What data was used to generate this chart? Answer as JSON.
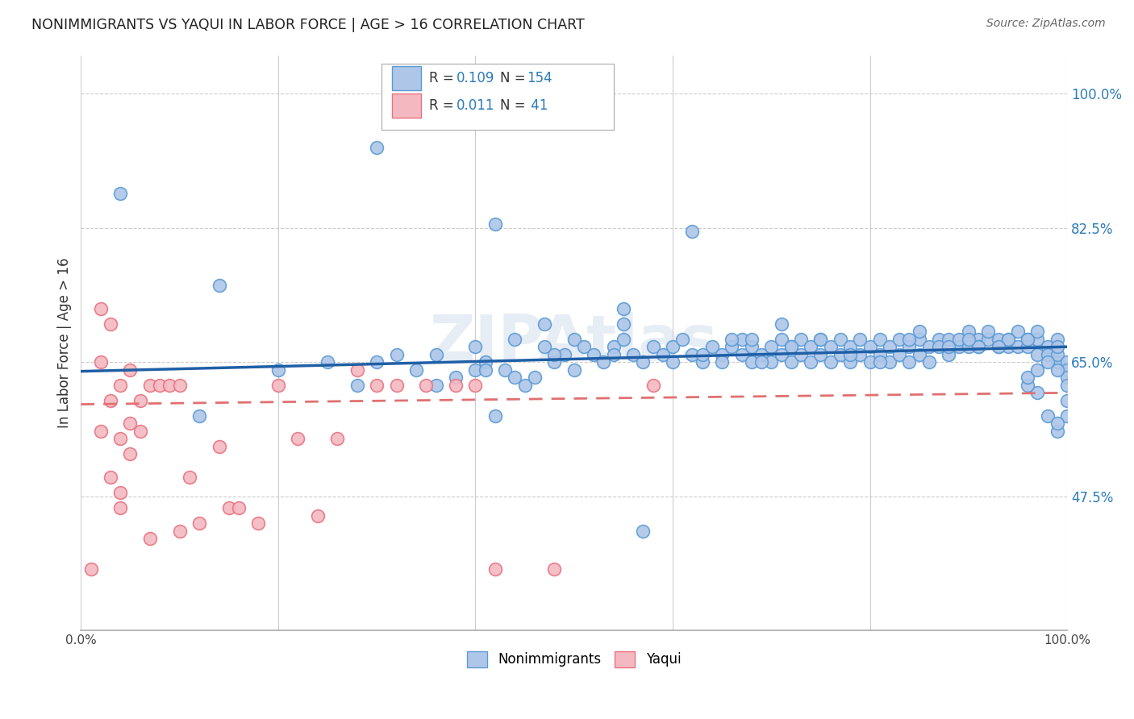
{
  "title": "NONIMMIGRANTS VS YAQUI IN LABOR FORCE | AGE > 16 CORRELATION CHART",
  "source": "Source: ZipAtlas.com",
  "ylabel": "In Labor Force | Age > 16",
  "xlim": [
    0.0,
    1.0
  ],
  "ylim": [
    0.3,
    1.05
  ],
  "ytick_vals": [
    0.475,
    0.65,
    0.825,
    1.0
  ],
  "ytick_labels": [
    "47.5%",
    "65.0%",
    "82.5%",
    "100.0%"
  ],
  "xtick_vals": [
    0.0,
    0.2,
    0.4,
    0.6,
    0.8,
    1.0
  ],
  "xtick_labels": [
    "0.0%",
    "",
    "",
    "",
    "",
    "100.0%"
  ],
  "nonimmigrants_color": "#aec6e8",
  "nonimmigrants_edge_color": "#5b9bd5",
  "yaqui_color": "#f4b8c1",
  "yaqui_edge_color": "#e8737f",
  "trend_blue": "#1f5fa6",
  "trend_pink": "#e07070",
  "legend_R1": "0.109",
  "legend_N1": "154",
  "legend_R2": "0.011",
  "legend_N2": "41",
  "watermark": "ZIPAtlas",
  "nonimmigrants_x": [
    0.04,
    0.12,
    0.14,
    0.2,
    0.25,
    0.28,
    0.3,
    0.3,
    0.32,
    0.34,
    0.36,
    0.38,
    0.4,
    0.4,
    0.41,
    0.42,
    0.43,
    0.44,
    0.45,
    0.46,
    0.47,
    0.48,
    0.49,
    0.5,
    0.5,
    0.51,
    0.52,
    0.53,
    0.54,
    0.55,
    0.55,
    0.56,
    0.57,
    0.58,
    0.59,
    0.6,
    0.6,
    0.61,
    0.62,
    0.63,
    0.64,
    0.65,
    0.65,
    0.66,
    0.67,
    0.67,
    0.68,
    0.68,
    0.69,
    0.7,
    0.7,
    0.71,
    0.71,
    0.72,
    0.72,
    0.73,
    0.73,
    0.74,
    0.74,
    0.75,
    0.75,
    0.76,
    0.76,
    0.77,
    0.77,
    0.78,
    0.78,
    0.79,
    0.79,
    0.8,
    0.8,
    0.81,
    0.81,
    0.82,
    0.82,
    0.83,
    0.83,
    0.84,
    0.84,
    0.85,
    0.85,
    0.86,
    0.86,
    0.87,
    0.87,
    0.88,
    0.88,
    0.89,
    0.89,
    0.9,
    0.9,
    0.91,
    0.91,
    0.92,
    0.92,
    0.93,
    0.93,
    0.94,
    0.94,
    0.95,
    0.95,
    0.96,
    0.96,
    0.97,
    0.97,
    0.98,
    0.98,
    0.99,
    0.99,
    1.0,
    1.0,
    1.0,
    0.42,
    0.55,
    0.68,
    0.48,
    0.62,
    0.71,
    0.85,
    0.88,
    0.91,
    0.94,
    0.97,
    0.99,
    0.99,
    0.98,
    0.97,
    0.96,
    0.96,
    0.97,
    0.98,
    0.99,
    1.0,
    0.57,
    0.36,
    0.41,
    0.44,
    0.47,
    0.54,
    0.63,
    0.66,
    0.69,
    0.72,
    0.75,
    0.78,
    0.81,
    0.84,
    0.9,
    0.93,
    0.96,
    0.99,
    1.0,
    1.0,
    0.99
  ],
  "nonimmigrants_y": [
    0.87,
    0.58,
    0.75,
    0.64,
    0.65,
    0.62,
    0.93,
    0.65,
    0.66,
    0.64,
    0.62,
    0.63,
    0.67,
    0.64,
    0.65,
    0.58,
    0.64,
    0.68,
    0.62,
    0.63,
    0.7,
    0.65,
    0.66,
    0.64,
    0.68,
    0.67,
    0.66,
    0.65,
    0.67,
    0.68,
    0.72,
    0.66,
    0.65,
    0.67,
    0.66,
    0.65,
    0.67,
    0.68,
    0.66,
    0.65,
    0.67,
    0.66,
    0.65,
    0.67,
    0.68,
    0.66,
    0.65,
    0.67,
    0.66,
    0.65,
    0.67,
    0.68,
    0.66,
    0.65,
    0.67,
    0.68,
    0.66,
    0.65,
    0.67,
    0.68,
    0.66,
    0.65,
    0.67,
    0.68,
    0.66,
    0.65,
    0.67,
    0.68,
    0.66,
    0.65,
    0.67,
    0.68,
    0.66,
    0.65,
    0.67,
    0.68,
    0.66,
    0.65,
    0.67,
    0.68,
    0.66,
    0.65,
    0.67,
    0.68,
    0.67,
    0.66,
    0.68,
    0.67,
    0.68,
    0.69,
    0.67,
    0.68,
    0.67,
    0.68,
    0.69,
    0.67,
    0.68,
    0.67,
    0.68,
    0.69,
    0.67,
    0.68,
    0.67,
    0.66,
    0.68,
    0.67,
    0.66,
    0.65,
    0.66,
    0.65,
    0.64,
    0.63,
    0.83,
    0.7,
    0.68,
    0.66,
    0.82,
    0.7,
    0.69,
    0.67,
    0.67,
    0.68,
    0.69,
    0.68,
    0.56,
    0.58,
    0.61,
    0.62,
    0.63,
    0.64,
    0.65,
    0.64,
    0.62,
    0.43,
    0.66,
    0.64,
    0.63,
    0.67,
    0.66,
    0.66,
    0.68,
    0.65,
    0.67,
    0.68,
    0.66,
    0.65,
    0.68,
    0.68,
    0.67,
    0.68,
    0.67,
    0.6,
    0.58,
    0.57
  ],
  "yaqui_x": [
    0.01,
    0.02,
    0.02,
    0.02,
    0.03,
    0.03,
    0.03,
    0.04,
    0.04,
    0.04,
    0.04,
    0.05,
    0.05,
    0.05,
    0.06,
    0.06,
    0.07,
    0.07,
    0.08,
    0.09,
    0.1,
    0.1,
    0.11,
    0.12,
    0.14,
    0.15,
    0.16,
    0.18,
    0.2,
    0.22,
    0.24,
    0.26,
    0.28,
    0.3,
    0.32,
    0.35,
    0.38,
    0.4,
    0.42,
    0.48,
    0.58
  ],
  "yaqui_y": [
    0.38,
    0.72,
    0.65,
    0.56,
    0.7,
    0.6,
    0.5,
    0.62,
    0.55,
    0.48,
    0.46,
    0.64,
    0.57,
    0.53,
    0.6,
    0.56,
    0.62,
    0.42,
    0.62,
    0.62,
    0.62,
    0.43,
    0.5,
    0.44,
    0.54,
    0.46,
    0.46,
    0.44,
    0.62,
    0.55,
    0.45,
    0.55,
    0.64,
    0.62,
    0.62,
    0.62,
    0.62,
    0.62,
    0.38,
    0.38,
    0.62
  ]
}
